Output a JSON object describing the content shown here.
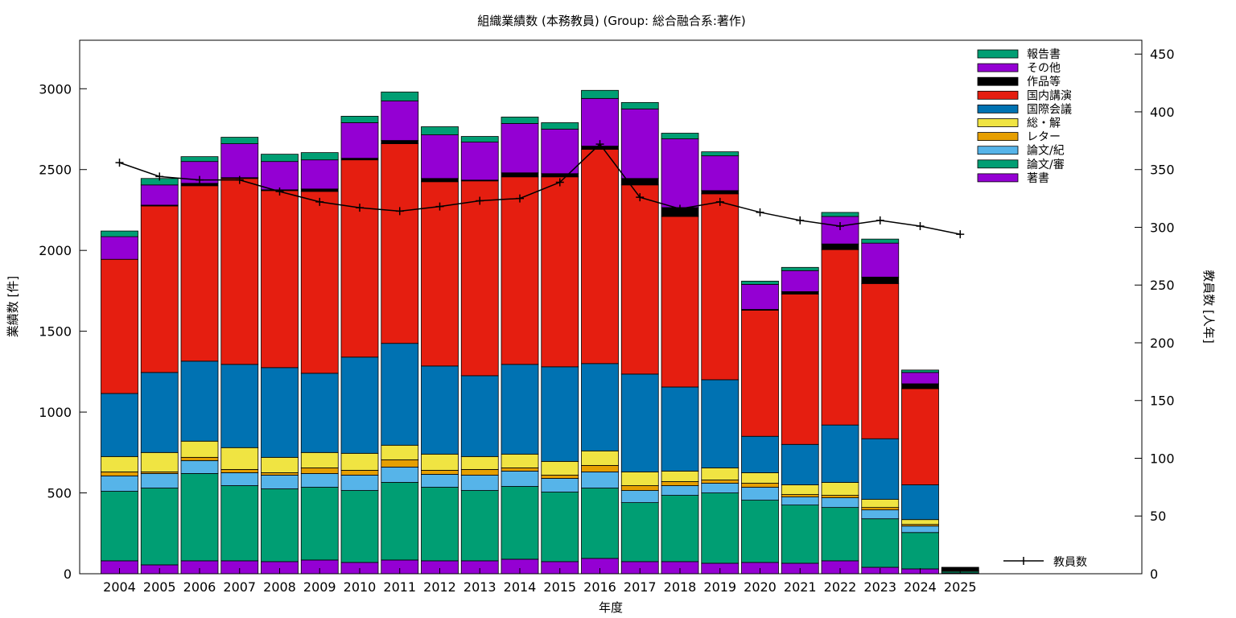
{
  "chart_data": {
    "type": "bar",
    "stacked": true,
    "title": "組織業績数 (本務教員) (Group: 総合融合系:著作)",
    "xlabel": "年度",
    "ylabel": "業績数 [件]",
    "y2label": "教員数 [人年]",
    "ylim": [
      0,
      3300
    ],
    "y2lim": [
      0,
      462
    ],
    "yticks": [
      0,
      500,
      1000,
      1500,
      2000,
      2500,
      3000
    ],
    "y2ticks": [
      0,
      50,
      100,
      150,
      200,
      250,
      300,
      350,
      400,
      450
    ],
    "grid": false,
    "legend_position": "top-right",
    "categories": [
      "2004",
      "2005",
      "2006",
      "2007",
      "2008",
      "2009",
      "2010",
      "2011",
      "2012",
      "2013",
      "2014",
      "2015",
      "2016",
      "2017",
      "2018",
      "2019",
      "2020",
      "2021",
      "2022",
      "2023",
      "2024",
      "2025"
    ],
    "series": [
      {
        "name": "著書",
        "color": "#9400d3",
        "values": [
          80,
          55,
          80,
          80,
          75,
          85,
          70,
          85,
          80,
          80,
          90,
          75,
          95,
          75,
          75,
          65,
          70,
          65,
          80,
          40,
          30,
          5
        ]
      },
      {
        "name": "論文/審",
        "color": "#009e73",
        "values": [
          430,
          475,
          540,
          465,
          450,
          450,
          445,
          480,
          455,
          435,
          450,
          430,
          435,
          365,
          410,
          435,
          385,
          360,
          330,
          300,
          225,
          10
        ]
      },
      {
        "name": "論文/紀",
        "color": "#56b4e9",
        "values": [
          95,
          90,
          80,
          80,
          85,
          85,
          95,
          95,
          80,
          95,
          95,
          85,
          100,
          75,
          60,
          60,
          80,
          50,
          60,
          55,
          40,
          0
        ]
      },
      {
        "name": "レター",
        "color": "#e69f00",
        "values": [
          25,
          10,
          20,
          20,
          15,
          35,
          30,
          45,
          25,
          35,
          20,
          20,
          40,
          30,
          25,
          20,
          25,
          15,
          15,
          15,
          10,
          0
        ]
      },
      {
        "name": "総・解",
        "color": "#f0e442",
        "values": [
          95,
          120,
          100,
          135,
          95,
          95,
          105,
          90,
          100,
          80,
          85,
          85,
          90,
          85,
          65,
          75,
          65,
          60,
          80,
          50,
          30,
          0
        ]
      },
      {
        "name": "国際会議",
        "color": "#0072b2",
        "values": [
          390,
          495,
          495,
          515,
          555,
          490,
          595,
          630,
          545,
          500,
          555,
          585,
          540,
          605,
          520,
          545,
          225,
          250,
          355,
          375,
          215,
          0
        ]
      },
      {
        "name": "国内講演",
        "color": "#e51e10",
        "values": [
          830,
          1030,
          1085,
          1150,
          1095,
          1125,
          1220,
          1235,
          1140,
          1205,
          1160,
          1175,
          1325,
          1170,
          1055,
          1150,
          780,
          930,
          1085,
          960,
          595,
          5
        ]
      },
      {
        "name": "作品等",
        "color": "#000000",
        "values": [
          0,
          5,
          15,
          5,
          5,
          15,
          10,
          20,
          20,
          5,
          25,
          20,
          20,
          40,
          55,
          20,
          5,
          15,
          35,
          40,
          30,
          20
        ]
      },
      {
        "name": "その他",
        "color": "#9400d3",
        "values": [
          140,
          125,
          135,
          210,
          175,
          180,
          220,
          245,
          270,
          235,
          305,
          275,
          295,
          430,
          425,
          215,
          155,
          130,
          170,
          210,
          70,
          0
        ]
      },
      {
        "name": "報告書",
        "color": "#009e73",
        "values": [
          35,
          40,
          30,
          40,
          45,
          45,
          40,
          55,
          50,
          35,
          40,
          40,
          50,
          40,
          35,
          25,
          20,
          20,
          25,
          25,
          15,
          0
        ]
      }
    ],
    "line_series": {
      "name": "教員数",
      "axis": "y2",
      "color": "#000000",
      "values": [
        356,
        344,
        341,
        341,
        331,
        322,
        317,
        314,
        318,
        323,
        325,
        339,
        372,
        326,
        316,
        322,
        313,
        306,
        301,
        306,
        301,
        294
      ]
    }
  }
}
